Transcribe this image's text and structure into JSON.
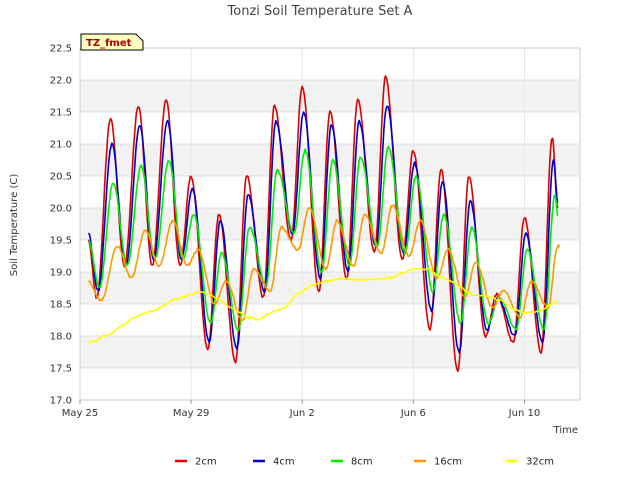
{
  "chart_data": {
    "type": "line",
    "title": "Tonzi Soil Temperature Set A",
    "xlabel": "Time",
    "ylabel": "Soil Temperature (C)",
    "station_label": "TZ_fmet",
    "x_unit": "days",
    "x_start": "May 25",
    "xlim": [
      0,
      18
    ],
    "ylim": [
      17.0,
      22.5
    ],
    "yticks": [
      17.0,
      17.5,
      18.0,
      18.5,
      19.0,
      19.5,
      20.0,
      20.5,
      21.0,
      21.5,
      22.0,
      22.5
    ],
    "xticks": [
      {
        "value": 0,
        "label": "May 25"
      },
      {
        "value": 4,
        "label": "May 29"
      },
      {
        "value": 8,
        "label": "Jun 2"
      },
      {
        "value": 12,
        "label": "Jun 6"
      },
      {
        "value": 16,
        "label": "Jun 10"
      }
    ],
    "grid": "alternating horizontal bands",
    "legend_position": "bottom",
    "series": [
      {
        "name": "2cm",
        "color": "#dd0000",
        "type": "diurnal",
        "maxima": [
          [
            1.1,
            21.4
          ],
          [
            2.1,
            21.6
          ],
          [
            3.1,
            21.7
          ],
          [
            4.0,
            20.5
          ],
          [
            5.0,
            19.9
          ],
          [
            6.0,
            20.5
          ],
          [
            7.0,
            21.6
          ],
          [
            8.0,
            21.9
          ],
          [
            9.0,
            21.5
          ],
          [
            10.0,
            21.7
          ],
          [
            11.0,
            22.05
          ],
          [
            12.0,
            20.9
          ],
          [
            13.0,
            20.6
          ],
          [
            14.0,
            20.5
          ],
          [
            15.0,
            18.65
          ],
          [
            16.0,
            19.85
          ],
          [
            17.0,
            21.1
          ]
        ],
        "minima": [
          [
            0.6,
            18.6
          ],
          [
            1.6,
            19.1
          ],
          [
            2.6,
            19.1
          ],
          [
            3.6,
            19.1
          ],
          [
            4.6,
            17.8
          ],
          [
            5.6,
            17.6
          ],
          [
            6.6,
            18.6
          ],
          [
            7.6,
            19.5
          ],
          [
            8.6,
            18.7
          ],
          [
            9.6,
            18.9
          ],
          [
            10.6,
            19.3
          ],
          [
            11.6,
            19.2
          ],
          [
            12.6,
            18.1
          ],
          [
            13.6,
            17.45
          ],
          [
            14.6,
            18.0
          ],
          [
            15.6,
            17.9
          ],
          [
            16.6,
            17.75
          ]
        ],
        "start": [
          0.3,
          19.5
        ],
        "end": [
          17.2,
          20.0
        ]
      },
      {
        "name": "4cm",
        "color": "#0000cc",
        "type": "diurnal",
        "maxima": [
          [
            1.15,
            21.0
          ],
          [
            2.15,
            21.3
          ],
          [
            3.15,
            21.35
          ],
          [
            4.05,
            20.3
          ],
          [
            5.05,
            19.8
          ],
          [
            6.05,
            20.2
          ],
          [
            7.05,
            21.35
          ],
          [
            8.05,
            21.5
          ],
          [
            9.05,
            21.3
          ],
          [
            10.05,
            21.35
          ],
          [
            11.05,
            21.6
          ],
          [
            12.05,
            20.7
          ],
          [
            13.05,
            20.4
          ],
          [
            14.05,
            20.1
          ],
          [
            15.05,
            18.6
          ],
          [
            16.05,
            19.6
          ],
          [
            17.05,
            20.75
          ]
        ],
        "minima": [
          [
            0.65,
            18.7
          ],
          [
            1.65,
            19.1
          ],
          [
            2.65,
            19.2
          ],
          [
            3.65,
            19.2
          ],
          [
            4.65,
            17.9
          ],
          [
            5.65,
            17.8
          ],
          [
            6.65,
            18.7
          ],
          [
            7.65,
            19.6
          ],
          [
            8.65,
            18.9
          ],
          [
            9.65,
            19.0
          ],
          [
            10.65,
            19.4
          ],
          [
            11.65,
            19.3
          ],
          [
            12.65,
            18.4
          ],
          [
            13.65,
            17.75
          ],
          [
            14.65,
            18.1
          ],
          [
            15.65,
            18.0
          ],
          [
            16.65,
            17.9
          ]
        ],
        "start": [
          0.3,
          19.6
        ],
        "end": [
          17.2,
          20.1
        ]
      },
      {
        "name": "8cm",
        "color": "#00ee00",
        "type": "diurnal",
        "maxima": [
          [
            1.2,
            20.4
          ],
          [
            2.2,
            20.65
          ],
          [
            3.2,
            20.75
          ],
          [
            4.1,
            19.9
          ],
          [
            5.1,
            19.3
          ],
          [
            6.1,
            19.7
          ],
          [
            7.1,
            20.6
          ],
          [
            8.1,
            20.9
          ],
          [
            9.1,
            20.75
          ],
          [
            10.1,
            20.8
          ],
          [
            11.1,
            20.95
          ],
          [
            12.1,
            20.5
          ],
          [
            13.1,
            19.9
          ],
          [
            14.1,
            19.7
          ],
          [
            15.1,
            18.6
          ],
          [
            16.1,
            19.35
          ],
          [
            17.1,
            20.2
          ]
        ],
        "minima": [
          [
            0.7,
            18.75
          ],
          [
            1.7,
            19.1
          ],
          [
            2.7,
            19.2
          ],
          [
            3.7,
            19.2
          ],
          [
            4.7,
            18.2
          ],
          [
            5.7,
            18.1
          ],
          [
            6.7,
            18.8
          ],
          [
            7.7,
            19.6
          ],
          [
            8.7,
            19.0
          ],
          [
            9.7,
            19.1
          ],
          [
            10.7,
            19.4
          ],
          [
            11.7,
            19.3
          ],
          [
            12.7,
            18.7
          ],
          [
            13.7,
            18.2
          ],
          [
            14.7,
            18.2
          ],
          [
            15.7,
            18.1
          ],
          [
            16.7,
            18.1
          ]
        ],
        "start": [
          0.3,
          19.5
        ],
        "end": [
          17.2,
          19.9
        ]
      },
      {
        "name": "16cm",
        "color": "#ff9900",
        "type": "diurnal",
        "maxima": [
          [
            1.35,
            19.4
          ],
          [
            2.35,
            19.65
          ],
          [
            3.35,
            19.8
          ],
          [
            4.25,
            19.35
          ],
          [
            5.25,
            18.85
          ],
          [
            6.25,
            19.05
          ],
          [
            7.25,
            19.7
          ],
          [
            8.25,
            20.0
          ],
          [
            9.25,
            19.8
          ],
          [
            10.25,
            19.9
          ],
          [
            11.25,
            20.05
          ],
          [
            12.25,
            19.8
          ],
          [
            13.25,
            19.35
          ],
          [
            14.25,
            19.15
          ],
          [
            15.25,
            18.7
          ],
          [
            16.25,
            18.85
          ],
          [
            17.25,
            19.4
          ]
        ],
        "minima": [
          [
            0.75,
            18.55
          ],
          [
            1.85,
            18.9
          ],
          [
            2.85,
            19.1
          ],
          [
            3.85,
            19.1
          ],
          [
            4.85,
            18.5
          ],
          [
            5.85,
            18.25
          ],
          [
            6.85,
            18.7
          ],
          [
            7.85,
            19.35
          ],
          [
            8.85,
            19.05
          ],
          [
            9.85,
            19.1
          ],
          [
            10.85,
            19.3
          ],
          [
            11.85,
            19.25
          ],
          [
            12.85,
            18.9
          ],
          [
            13.85,
            18.6
          ],
          [
            14.85,
            18.45
          ],
          [
            15.85,
            18.3
          ],
          [
            16.85,
            18.45
          ]
        ],
        "start": [
          0.3,
          18.85
        ],
        "end": [
          17.2,
          19.4
        ]
      },
      {
        "name": "32cm",
        "color": "#ffff00",
        "type": "smooth",
        "points": [
          [
            0.3,
            17.88
          ],
          [
            1.0,
            18.02
          ],
          [
            2.0,
            18.3
          ],
          [
            2.8,
            18.42
          ],
          [
            3.3,
            18.55
          ],
          [
            3.8,
            18.62
          ],
          [
            4.3,
            18.7
          ],
          [
            4.8,
            18.62
          ],
          [
            5.4,
            18.45
          ],
          [
            6.0,
            18.3
          ],
          [
            6.4,
            18.25
          ],
          [
            6.8,
            18.35
          ],
          [
            7.4,
            18.45
          ],
          [
            7.8,
            18.65
          ],
          [
            8.3,
            18.78
          ],
          [
            8.8,
            18.85
          ],
          [
            9.4,
            18.9
          ],
          [
            10.0,
            18.88
          ],
          [
            10.6,
            18.88
          ],
          [
            11.3,
            18.92
          ],
          [
            12.0,
            19.05
          ],
          [
            12.5,
            19.05
          ],
          [
            13.0,
            18.92
          ],
          [
            13.6,
            18.8
          ],
          [
            14.1,
            18.65
          ],
          [
            14.6,
            18.62
          ],
          [
            15.2,
            18.55
          ],
          [
            15.6,
            18.42
          ],
          [
            16.0,
            18.36
          ],
          [
            16.5,
            18.38
          ],
          [
            17.2,
            18.55
          ]
        ]
      }
    ]
  }
}
